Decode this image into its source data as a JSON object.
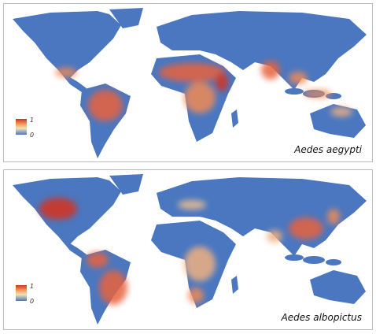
{
  "panels": [
    {
      "legend": {
        "max": "1",
        "min": "0"
      },
      "label": "Aedes aegypti"
    },
    {
      "legend": {
        "max": "1",
        "min": "0"
      },
      "label": "Aedes albopictus"
    }
  ]
}
